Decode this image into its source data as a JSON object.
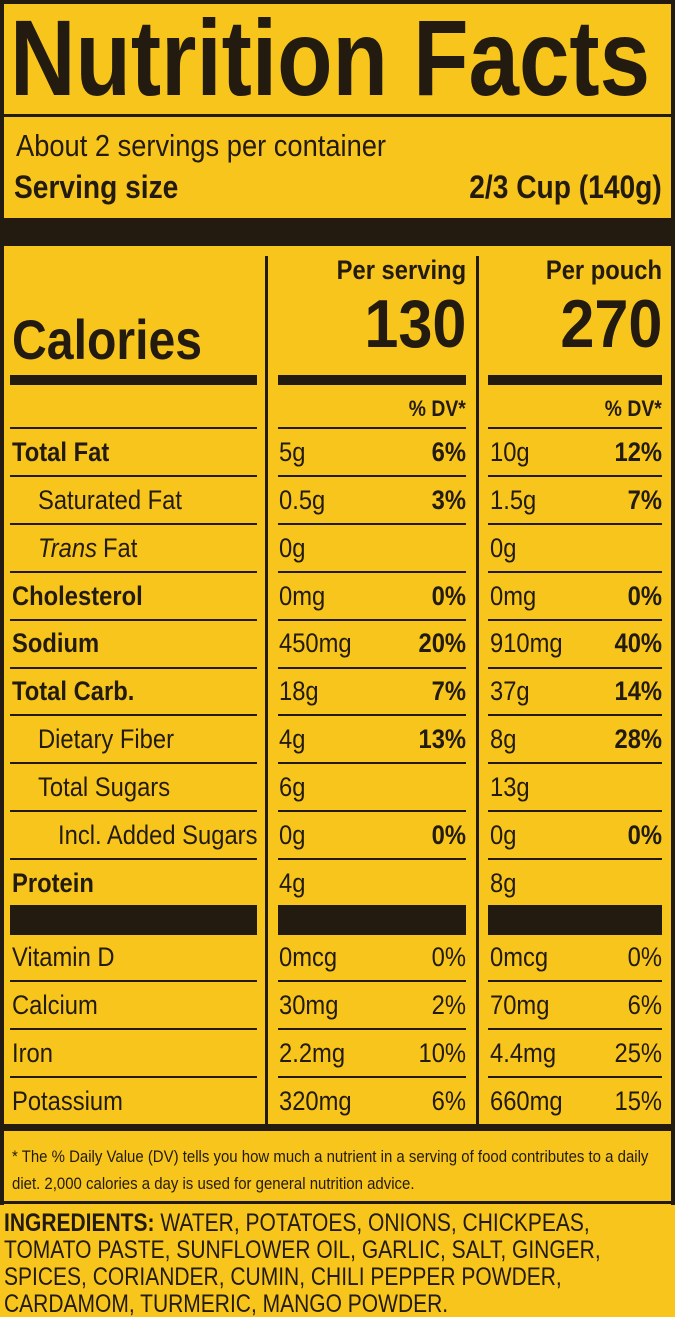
{
  "title": "Nutrition Facts",
  "servings": "About 2 servings per container",
  "serving_size_label": "Serving size",
  "serving_size": "2/3 Cup (140g)",
  "calories_label": "Calories",
  "columns": [
    {
      "header": "Per serving",
      "calories": "130"
    },
    {
      "header": "Per pouch",
      "calories": "270"
    }
  ],
  "dv_header": "% DV*",
  "nutrients": [
    {
      "name": "Total Fat",
      "bold": true,
      "indent": 0,
      "values": [
        [
          "5g",
          "6%"
        ],
        [
          "10g",
          "12%"
        ]
      ]
    },
    {
      "name": "Saturated Fat",
      "bold": false,
      "indent": 1,
      "values": [
        [
          "0.5g",
          "3%"
        ],
        [
          "1.5g",
          "7%"
        ]
      ]
    },
    {
      "name_italic": "Trans",
      "name": "Fat",
      "bold": false,
      "indent": 1,
      "values": [
        [
          "0g"
        ],
        [
          "0g"
        ]
      ]
    },
    {
      "name": "Cholesterol",
      "bold": true,
      "indent": 0,
      "values": [
        [
          "0mg",
          "0%"
        ],
        [
          "0mg",
          "0%"
        ]
      ]
    },
    {
      "name": "Sodium",
      "bold": true,
      "indent": 0,
      "values": [
        [
          "450mg",
          "20%"
        ],
        [
          "910mg",
          "40%"
        ]
      ]
    },
    {
      "name": "Total Carb.",
      "bold": true,
      "indent": 0,
      "values": [
        [
          "18g",
          "7%"
        ],
        [
          "37g",
          "14%"
        ]
      ]
    },
    {
      "name": "Dietary Fiber",
      "bold": false,
      "indent": 1,
      "values": [
        [
          "4g",
          "13%"
        ],
        [
          "8g",
          "28%"
        ]
      ]
    },
    {
      "name": "Total Sugars",
      "bold": false,
      "indent": 1,
      "values": [
        [
          "6g"
        ],
        [
          "13g"
        ]
      ]
    },
    {
      "name": "Incl. Added Sugars",
      "bold": false,
      "indent": 2,
      "values": [
        [
          "0g",
          "0%"
        ],
        [
          "0g",
          "0%"
        ]
      ]
    },
    {
      "name": "Protein",
      "bold": true,
      "indent": 0,
      "values": [
        [
          "4g"
        ],
        [
          "8g"
        ]
      ]
    }
  ],
  "vitamins": [
    {
      "name": "Vitamin D",
      "values": [
        [
          "0mcg",
          "0%"
        ],
        [
          "0mcg",
          "0%"
        ]
      ]
    },
    {
      "name": "Calcium",
      "values": [
        [
          "30mg",
          "2%"
        ],
        [
          "70mg",
          "6%"
        ]
      ]
    },
    {
      "name": "Iron",
      "values": [
        [
          "2.2mg",
          "10%"
        ],
        [
          "4.4mg",
          "25%"
        ]
      ]
    },
    {
      "name": "Potassium",
      "values": [
        [
          "320mg",
          "6%"
        ],
        [
          "660mg",
          "15%"
        ]
      ]
    }
  ],
  "footnote": "* The % Daily Value (DV) tells you how much a nutrient in a serving of food contributes to a daily diet. 2,000 calories a day is used for general nutrition advice.",
  "ingredients_label": "INGREDIENTS:",
  "ingredients": "WATER, POTATOES, ONIONS, CHICKPEAS, TOMATO PASTE, SUNFLOWER OIL, GARLIC, SALT, GINGER, SPICES, CORIANDER, CUMIN, CHILI PEPPER POWDER, CARDAMOM, TURMERIC, MANGO POWDER."
}
